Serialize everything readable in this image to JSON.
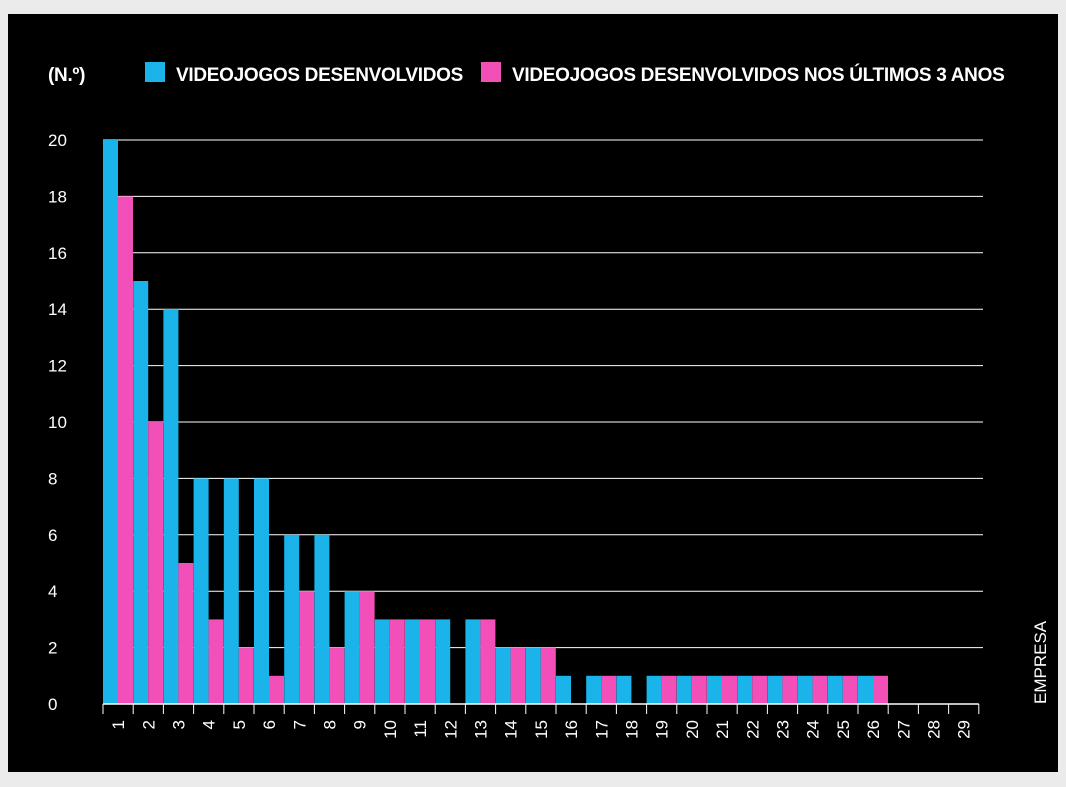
{
  "chart_data": {
    "type": "bar",
    "unit_label": "(N.º)",
    "xlabel": "EMPRESA",
    "ylabel": "",
    "ylim": [
      0,
      20
    ],
    "yticks": [
      0,
      2,
      4,
      6,
      8,
      10,
      12,
      14,
      16,
      18,
      20
    ],
    "grid": true,
    "legend_position": "top",
    "categories": [
      "1",
      "2",
      "3",
      "4",
      "5",
      "6",
      "7",
      "8",
      "9",
      "10",
      "11",
      "12",
      "13",
      "14",
      "15",
      "16",
      "17",
      "18",
      "19",
      "20",
      "21",
      "22",
      "23",
      "24",
      "25",
      "26",
      "27",
      "28",
      "29"
    ],
    "series": [
      {
        "name": "VIDEOJOGOS DESENVOLVIDOS",
        "color": "#1ab4ea",
        "values": [
          20,
          15,
          14,
          8,
          8,
          8,
          6,
          6,
          4,
          3,
          3,
          3,
          3,
          2,
          2,
          1,
          1,
          1,
          1,
          1,
          1,
          1,
          1,
          1,
          1,
          1,
          0,
          0,
          0
        ]
      },
      {
        "name": "VIDEOJOGOS DESENVOLVIDOS NOS ÚLTIMOS 3 ANOS",
        "color": "#f24fb9",
        "values": [
          18,
          10,
          5,
          3,
          2,
          1,
          4,
          2,
          4,
          3,
          3,
          0,
          3,
          2,
          2,
          0,
          1,
          0,
          1,
          1,
          1,
          1,
          1,
          1,
          1,
          1,
          0,
          0,
          0
        ]
      }
    ]
  }
}
